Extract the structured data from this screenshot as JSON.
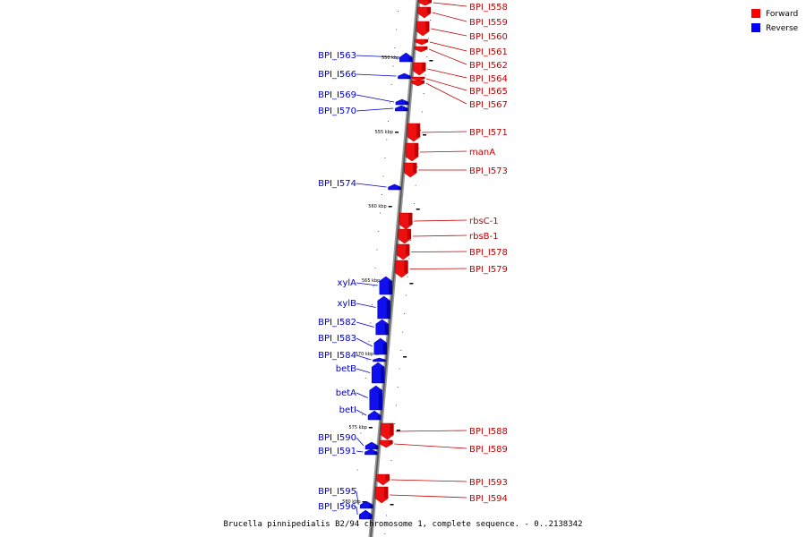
{
  "caption": "Brucella pinnipedialis B2/94 chromosome 1, complete sequence. - 0..2138342",
  "legend": [
    {
      "label": "Forward",
      "color": "#ff0000"
    },
    {
      "label": "Reverse",
      "color": "#0000ff"
    }
  ],
  "ruler_labels": [
    "550 kbp",
    "555 kbp",
    "560 kbp",
    "565 kbp",
    "570 kbp",
    "575 kbp",
    "580 kbp"
  ],
  "forward_genes": [
    "BPI_I558",
    "BPI_I559",
    "BPI_I560",
    "BPI_I561",
    "BPI_I562",
    "BPI_I564",
    "BPI_I565",
    "BPI_I567",
    "BPI_I571",
    "manA",
    "BPI_I573",
    "rbsC-1",
    "rbsB-1",
    "BPI_I578",
    "BPI_I579",
    "BPI_I588",
    "BPI_I589",
    "BPI_I593",
    "BPI_I594"
  ],
  "reverse_genes": [
    "BPI_I563",
    "BPI_I566",
    "BPI_I569",
    "BPI_I570",
    "BPI_I574",
    "xylA",
    "xylB",
    "BPI_I582",
    "BPI_I583",
    "BPI_I584",
    "betB",
    "betA",
    "betI",
    "BPI_I590",
    "BPI_I591",
    "BPI_I595",
    "BPI_I596"
  ]
}
